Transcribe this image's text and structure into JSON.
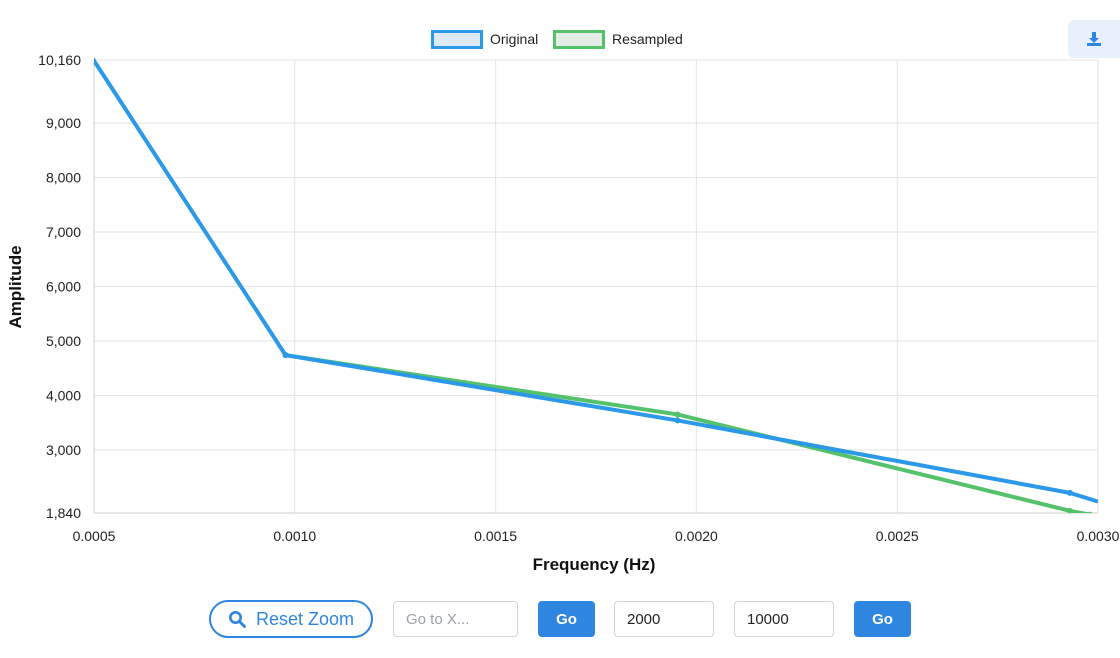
{
  "chart_data": {
    "type": "line",
    "xlabel": "Frequency (Hz)",
    "ylabel": "Amplitude",
    "xlim": [
      0.0005,
      0.003
    ],
    "ylim": [
      1840,
      10160
    ],
    "x_ticks": [
      "0.0005",
      "0.0010",
      "0.0015",
      "0.0020",
      "0.0025",
      "0.0030"
    ],
    "x_tick_values": [
      0.0005,
      0.001,
      0.0015,
      0.002,
      0.0025,
      0.003
    ],
    "y_ticks": [
      "1,840",
      "3,000",
      "4,000",
      "5,000",
      "6,000",
      "7,000",
      "8,000",
      "9,000",
      "10,160"
    ],
    "y_tick_values": [
      1840,
      3000,
      4000,
      5000,
      6000,
      7000,
      8000,
      9000,
      10160
    ],
    "grid": true,
    "legend_position": "top-center",
    "series": [
      {
        "name": "Original",
        "color": "#2b98e8",
        "fill": "#dde9f5",
        "x": [
          0.00049,
          0.000977,
          0.001953,
          0.00293,
          0.003
        ],
        "y": [
          10260,
          4740,
          3540,
          2210,
          2050
        ]
      },
      {
        "name": "Resampled",
        "color": "#53c26b",
        "fill": "#e4ece5",
        "x": [
          0.000977,
          0.001953,
          0.00293,
          0.00298
        ],
        "y": [
          4740,
          3650,
          1880,
          1810
        ]
      }
    ]
  },
  "toolbar": {
    "download_icon": "download-icon",
    "reset_label": "Reset Zoom",
    "goto_placeholder": "Go to X...",
    "go_label": "Go",
    "range_min": "2000",
    "range_max": "10000",
    "range_go_label": "Go"
  },
  "colors": {
    "accent": "#2f86e0"
  }
}
